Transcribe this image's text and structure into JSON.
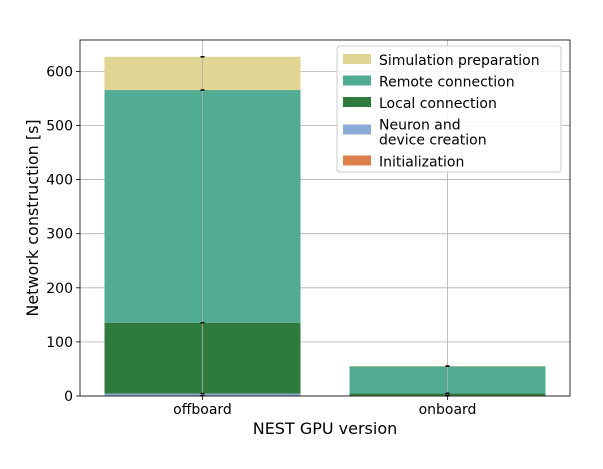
{
  "chart_data": {
    "type": "bar",
    "stacked": true,
    "title": "",
    "xlabel": "NEST GPU version",
    "ylabel": "Network construction [s]",
    "categories": [
      "offboard",
      "onboard"
    ],
    "ylim": [
      0,
      658
    ],
    "xlim": [
      -0.5,
      1.5
    ],
    "yticks": [
      0,
      100,
      200,
      300,
      400,
      500,
      600
    ],
    "grid": true,
    "legend_position": "top-right",
    "series": [
      {
        "name": "Initialization",
        "color": "#dd7f4a",
        "values": [
          0.5,
          0.3
        ]
      },
      {
        "name": "Neuron and\ndevice creation",
        "color": "#8aabd6",
        "values": [
          4,
          0.7
        ]
      },
      {
        "name": "Local connection",
        "color": "#2f7b3e",
        "values": [
          131,
          4
        ]
      },
      {
        "name": "Remote connection",
        "color": "#52ab93",
        "values": [
          430,
          50
        ]
      },
      {
        "name": "Simulation preparation",
        "color": "#e0d593",
        "values": [
          61.5,
          0.5
        ]
      }
    ],
    "legend_order": [
      "Simulation preparation",
      "Remote connection",
      "Local connection",
      "Neuron and\ndevice creation",
      "Initialization"
    ]
  }
}
